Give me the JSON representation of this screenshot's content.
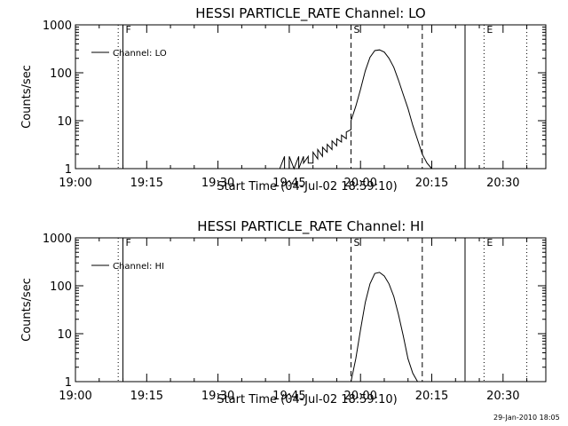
{
  "chart_data": [
    {
      "type": "line",
      "title": "HESSI PARTICLE_RATE Channel: LO",
      "xlabel": "Start Time (04-Jul-02 18:59:10)",
      "ylabel": "Counts/sec",
      "legend": "Channel: LO",
      "legend_position": "top-left",
      "y_scale": "log",
      "ylim": [
        1,
        1000
      ],
      "xlim": [
        "19:00",
        "20:39"
      ],
      "x_ticks": [
        "19:00",
        "19:15",
        "19:30",
        "19:45",
        "20:00",
        "20:15",
        "20:30"
      ],
      "y_ticks": [
        "1",
        "10",
        "100",
        "1000"
      ],
      "markers": [
        {
          "label": "F",
          "time": "19:10",
          "style": "solid"
        },
        {
          "label": "",
          "time": "19:09",
          "style": "dotted"
        },
        {
          "label": "S",
          "time": "19:58",
          "style": "dashed"
        },
        {
          "label": "",
          "time": "20:13",
          "style": "dashed"
        },
        {
          "label": "",
          "time": "20:22",
          "style": "solid"
        },
        {
          "label": "E",
          "time": "20:26",
          "style": "dotted"
        },
        {
          "label": "",
          "time": "20:35",
          "style": "dotted"
        }
      ],
      "series": [
        {
          "name": "Channel: LO",
          "x": [
            "19:43",
            "19:44",
            "19:44",
            "19:45",
            "19:45",
            "19:46",
            "19:46",
            "19:47",
            "19:47",
            "19:48",
            "19:48",
            "19:49",
            "19:49",
            "19:50",
            "19:50",
            "19:51",
            "19:51",
            "19:52",
            "19:52",
            "19:53",
            "19:53",
            "19:54",
            "19:54",
            "19:55",
            "19:55",
            "19:56",
            "19:56",
            "19:57",
            "19:57",
            "19:58",
            "19:58",
            "19:59",
            "20:00",
            "20:01",
            "20:02",
            "20:03",
            "20:04",
            "20:05",
            "20:06",
            "20:07",
            "20:08",
            "20:09",
            "20:10",
            "20:11",
            "20:12",
            "20:13",
            "20:14",
            "20:15"
          ],
          "y": [
            1,
            1.8,
            1,
            1,
            1.8,
            1,
            1,
            1.8,
            1,
            1.8,
            1.3,
            1.8,
            1.3,
            1.3,
            2.2,
            1.6,
            2.5,
            1.8,
            2.8,
            2.2,
            3.2,
            2.5,
            3.8,
            3.0,
            4.2,
            3.6,
            5.0,
            4.2,
            5.8,
            6.5,
            10,
            20,
            45,
            110,
            210,
            290,
            300,
            270,
            200,
            130,
            70,
            35,
            18,
            8,
            4,
            2,
            1.3,
            1
          ]
        }
      ]
    },
    {
      "type": "line",
      "title": "HESSI PARTICLE_RATE Channel: HI",
      "xlabel": "Start Time (04-Jul-02 18:59:10)",
      "ylabel": "Counts/sec",
      "legend": "Channel: HI",
      "legend_position": "top-left",
      "y_scale": "log",
      "ylim": [
        1,
        1000
      ],
      "xlim": [
        "19:00",
        "20:39"
      ],
      "x_ticks": [
        "19:00",
        "19:15",
        "19:30",
        "19:45",
        "20:00",
        "20:15",
        "20:30"
      ],
      "y_ticks": [
        "1",
        "10",
        "100",
        "1000"
      ],
      "markers": [
        {
          "label": "F",
          "time": "19:10",
          "style": "solid"
        },
        {
          "label": "",
          "time": "19:09",
          "style": "dotted"
        },
        {
          "label": "S",
          "time": "19:58",
          "style": "dashed"
        },
        {
          "label": "",
          "time": "20:13",
          "style": "dashed"
        },
        {
          "label": "",
          "time": "20:22",
          "style": "solid"
        },
        {
          "label": "E",
          "time": "20:26",
          "style": "dotted"
        },
        {
          "label": "",
          "time": "20:35",
          "style": "dotted"
        }
      ],
      "series": [
        {
          "name": "Channel: HI",
          "x": [
            "19:58",
            "19:59",
            "20:00",
            "20:01",
            "20:02",
            "20:03",
            "20:04",
            "20:05",
            "20:06",
            "20:07",
            "20:08",
            "20:09",
            "20:10",
            "20:11",
            "20:12"
          ],
          "y": [
            1,
            3,
            12,
            45,
            110,
            180,
            190,
            160,
            110,
            60,
            25,
            9,
            3,
            1.5,
            1
          ]
        }
      ]
    }
  ],
  "footer": {
    "timestamp": "29-Jan-2010 18:05"
  }
}
